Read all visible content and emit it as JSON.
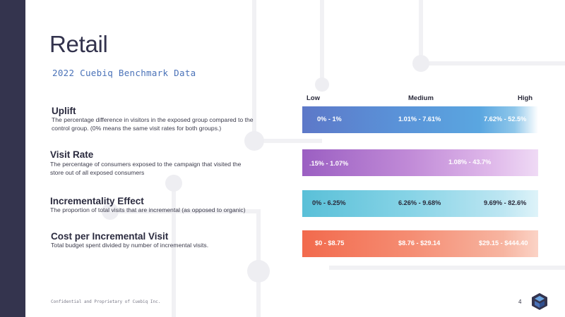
{
  "header": {
    "title": "Retail",
    "subtitle": "2022 Cuebiq Benchmark Data"
  },
  "scale": {
    "low": "Low",
    "medium": "Medium",
    "high": "High"
  },
  "metrics": [
    {
      "title": "Uplift",
      "description": "The percentage difference in visitors in the exposed group compared to the control group. (0% means the same visit rates for both groups.)",
      "low": "0% - 1%",
      "medium": "1.01% - 7.61%",
      "high": "7.62% - 52.5%"
    },
    {
      "title": "Visit Rate",
      "description": "The percentage of consumers exposed to the campaign that visited the store out of all exposed consumers",
      "low": ".15% - 1.07%",
      "high": "1.08% - 43.7%"
    },
    {
      "title": "Incrementality Effect",
      "description": "The proportion of total visits that are incremental (as opposed to organic)",
      "low": "0% - 6.25%",
      "medium": "6.26% - 9.68%",
      "high": "9.69% - 82.6%"
    },
    {
      "title": "Cost per Incremental Visit",
      "description": "Total budget spent divided by number of incremental visits.",
      "low": "$0 - $8.75",
      "medium": "$8.76 - $29.14",
      "high": "$29.15 - $444.40"
    }
  ],
  "footer": {
    "confidential": "Confidential and Proprietary of Cuebiq Inc.",
    "page_number": "4"
  },
  "colors": {
    "left_band": "#34344e",
    "uplift_bar": "#5a92d8",
    "visit_rate_bar": "#c08ad7",
    "incrementality_bar": "#86d3e6",
    "cost_bar": "#f58c72"
  }
}
